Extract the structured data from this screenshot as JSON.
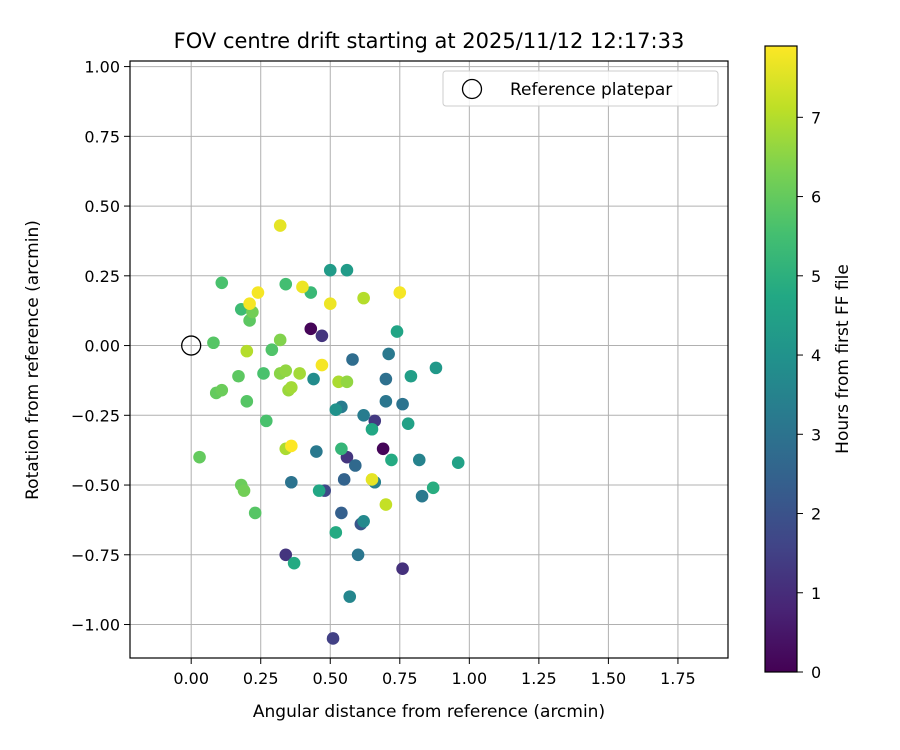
{
  "chart_data": {
    "type": "scatter",
    "title": "FOV centre drift starting at 2025/11/12 12:17:33",
    "xlabel": "Angular distance from reference (arcmin)",
    "ylabel": "Rotation from reference (arcmin)",
    "xlim": [
      -0.22,
      1.93
    ],
    "ylim": [
      -1.12,
      1.02
    ],
    "xticks": [
      0.0,
      0.25,
      0.5,
      0.75,
      1.0,
      1.25,
      1.5,
      1.75
    ],
    "xtick_labels": [
      "0.00",
      "0.25",
      "0.50",
      "0.75",
      "1.00",
      "1.25",
      "1.50",
      "1.75"
    ],
    "yticks": [
      1.0,
      0.75,
      0.5,
      0.25,
      0.0,
      -0.25,
      -0.5,
      -0.75,
      -1.0
    ],
    "ytick_labels": [
      "1.00",
      "0.75",
      "0.50",
      "0.25",
      "0.00",
      "−0.25",
      "−0.50",
      "−0.75",
      "−1.00"
    ],
    "grid": true,
    "legend": {
      "position": "top-right",
      "entries": [
        "Reference platepar"
      ]
    },
    "reference_point": {
      "x": 0.0,
      "y": 0.0,
      "label": "Reference platepar"
    },
    "colorbar": {
      "label": "Hours from first FF file",
      "min": 0,
      "max": 7.9,
      "ticks": [
        0,
        1,
        2,
        3,
        4,
        5,
        6,
        7
      ],
      "colormap": "viridis"
    },
    "points": [
      {
        "x": 0.43,
        "y": 0.06,
        "h": 0.1
      },
      {
        "x": 0.47,
        "y": 0.035,
        "h": 1.2
      },
      {
        "x": 0.69,
        "y": -0.37,
        "h": 0.1
      },
      {
        "x": 0.66,
        "y": -0.27,
        "h": 1.3
      },
      {
        "x": 0.56,
        "y": -0.4,
        "h": 1.2
      },
      {
        "x": 0.76,
        "y": -0.8,
        "h": 1.1
      },
      {
        "x": 0.34,
        "y": -0.75,
        "h": 1.2
      },
      {
        "x": 0.51,
        "y": -1.05,
        "h": 1.5
      },
      {
        "x": 0.48,
        "y": -0.52,
        "h": 1.7
      },
      {
        "x": 0.61,
        "y": -0.64,
        "h": 2.1
      },
      {
        "x": 0.54,
        "y": -0.6,
        "h": 2.4
      },
      {
        "x": 0.55,
        "y": -0.48,
        "h": 2.5
      },
      {
        "x": 0.59,
        "y": -0.43,
        "h": 2.7
      },
      {
        "x": 0.36,
        "y": -0.49,
        "h": 3.0
      },
      {
        "x": 0.45,
        "y": -0.38,
        "h": 3.2
      },
      {
        "x": 0.6,
        "y": -0.75,
        "h": 3.1
      },
      {
        "x": 0.57,
        "y": -0.9,
        "h": 3.6
      },
      {
        "x": 0.58,
        "y": -0.05,
        "h": 2.8
      },
      {
        "x": 0.7,
        "y": -0.12,
        "h": 2.9
      },
      {
        "x": 0.71,
        "y": -0.03,
        "h": 3.2
      },
      {
        "x": 0.7,
        "y": -0.2,
        "h": 3.1
      },
      {
        "x": 0.76,
        "y": -0.21,
        "h": 3.0
      },
      {
        "x": 0.62,
        "y": -0.25,
        "h": 3.3
      },
      {
        "x": 0.54,
        "y": -0.22,
        "h": 3.3
      },
      {
        "x": 0.52,
        "y": -0.23,
        "h": 4.0
      },
      {
        "x": 0.44,
        "y": -0.12,
        "h": 3.8
      },
      {
        "x": 0.83,
        "y": -0.54,
        "h": 3.2
      },
      {
        "x": 0.82,
        "y": -0.41,
        "h": 3.5
      },
      {
        "x": 0.66,
        "y": -0.49,
        "h": 3.4
      },
      {
        "x": 0.62,
        "y": -0.63,
        "h": 3.7
      },
      {
        "x": 0.5,
        "y": 0.27,
        "h": 4.3
      },
      {
        "x": 0.56,
        "y": 0.27,
        "h": 4.3
      },
      {
        "x": 0.74,
        "y": 0.05,
        "h": 4.6
      },
      {
        "x": 0.79,
        "y": -0.11,
        "h": 4.4
      },
      {
        "x": 0.88,
        "y": -0.08,
        "h": 4.2
      },
      {
        "x": 0.78,
        "y": -0.28,
        "h": 4.5
      },
      {
        "x": 0.65,
        "y": -0.3,
        "h": 4.7
      },
      {
        "x": 0.72,
        "y": -0.41,
        "h": 4.8
      },
      {
        "x": 0.87,
        "y": -0.51,
        "h": 4.9
      },
      {
        "x": 0.96,
        "y": -0.42,
        "h": 4.5
      },
      {
        "x": 0.46,
        "y": -0.52,
        "h": 4.7
      },
      {
        "x": 0.52,
        "y": -0.67,
        "h": 4.8
      },
      {
        "x": 0.37,
        "y": -0.78,
        "h": 4.8
      },
      {
        "x": 0.54,
        "y": -0.37,
        "h": 5.2
      },
      {
        "x": 0.43,
        "y": 0.19,
        "h": 5.3
      },
      {
        "x": 0.34,
        "y": 0.22,
        "h": 5.5
      },
      {
        "x": 0.26,
        "y": -0.1,
        "h": 5.6
      },
      {
        "x": 0.29,
        "y": -0.015,
        "h": 5.7
      },
      {
        "x": 0.27,
        "y": -0.27,
        "h": 5.6
      },
      {
        "x": 0.2,
        "y": -0.2,
        "h": 5.8
      },
      {
        "x": 0.17,
        "y": -0.11,
        "h": 5.9
      },
      {
        "x": 0.08,
        "y": 0.01,
        "h": 5.8
      },
      {
        "x": 0.11,
        "y": 0.225,
        "h": 5.6
      },
      {
        "x": 0.18,
        "y": 0.13,
        "h": 5.4
      },
      {
        "x": 0.21,
        "y": 0.09,
        "h": 5.9
      },
      {
        "x": 0.22,
        "y": 0.12,
        "h": 6.2
      },
      {
        "x": 0.09,
        "y": -0.17,
        "h": 6.0
      },
      {
        "x": 0.11,
        "y": -0.16,
        "h": 6.1
      },
      {
        "x": 0.03,
        "y": -0.4,
        "h": 6.0
      },
      {
        "x": 0.18,
        "y": -0.5,
        "h": 6.1
      },
      {
        "x": 0.19,
        "y": -0.52,
        "h": 6.2
      },
      {
        "x": 0.23,
        "y": -0.6,
        "h": 5.8
      },
      {
        "x": 0.32,
        "y": 0.02,
        "h": 6.4
      },
      {
        "x": 0.32,
        "y": -0.1,
        "h": 6.5
      },
      {
        "x": 0.34,
        "y": -0.09,
        "h": 6.6
      },
      {
        "x": 0.35,
        "y": -0.16,
        "h": 6.7
      },
      {
        "x": 0.36,
        "y": -0.15,
        "h": 6.8
      },
      {
        "x": 0.39,
        "y": -0.1,
        "h": 6.8
      },
      {
        "x": 0.2,
        "y": -0.02,
        "h": 7.0
      },
      {
        "x": 0.34,
        "y": -0.37,
        "h": 6.9
      },
      {
        "x": 0.53,
        "y": -0.13,
        "h": 6.9
      },
      {
        "x": 0.56,
        "y": -0.13,
        "h": 6.6
      },
      {
        "x": 0.62,
        "y": 0.17,
        "h": 7.0
      },
      {
        "x": 0.7,
        "y": -0.57,
        "h": 7.2
      },
      {
        "x": 0.65,
        "y": -0.48,
        "h": 7.6
      },
      {
        "x": 0.32,
        "y": 0.43,
        "h": 7.6
      },
      {
        "x": 0.24,
        "y": 0.19,
        "h": 7.8
      },
      {
        "x": 0.21,
        "y": 0.15,
        "h": 7.8
      },
      {
        "x": 0.4,
        "y": 0.21,
        "h": 7.7
      },
      {
        "x": 0.5,
        "y": 0.15,
        "h": 7.7
      },
      {
        "x": 0.75,
        "y": 0.19,
        "h": 7.8
      },
      {
        "x": 0.47,
        "y": -0.07,
        "h": 7.8
      },
      {
        "x": 0.36,
        "y": -0.36,
        "h": 7.9
      }
    ]
  }
}
